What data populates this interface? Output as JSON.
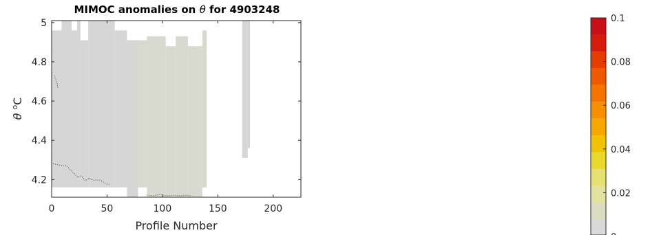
{
  "chart_data": {
    "type": "heatmap",
    "title": "MIMOC anomalies on θ  for 4903248",
    "title_parts": {
      "prefix": "MIMOC anomalies on ",
      "symbol": "θ",
      "suffix": "  for 4903248"
    },
    "xlabel": "Profile Number",
    "ylabel": "θ °C",
    "ylabel_parts": {
      "symbol": "θ",
      "unit_super": "o",
      "unit": "C"
    },
    "xlim": [
      0,
      225
    ],
    "ylim": [
      4.11,
      5.01
    ],
    "xticks": [
      0,
      50,
      100,
      150,
      200
    ],
    "yticks": [
      4.2,
      4.4,
      4.6,
      4.8,
      5
    ],
    "xtick_labels": [
      "0",
      "50",
      "100",
      "150",
      "200"
    ],
    "ytick_labels": [
      "4.2",
      "4.4",
      "4.6",
      "4.8",
      "5"
    ],
    "grid": false,
    "cell_color": "#d6d6d6",
    "cell_color_alt": "#d8d9cf",
    "columns": [
      {
        "x0": 0,
        "x1": 9,
        "y0": 4.16,
        "y1": 4.96
      },
      {
        "x0": 9,
        "x1": 18,
        "y0": 4.16,
        "y1": 5.01
      },
      {
        "x0": 18,
        "x1": 23,
        "y0": 4.16,
        "y1": 4.96
      },
      {
        "x0": 23,
        "x1": 26,
        "y0": 4.16,
        "y1": 5.01
      },
      {
        "x0": 26,
        "x1": 33,
        "y0": 4.16,
        "y1": 4.91
      },
      {
        "x0": 33,
        "x1": 57,
        "y0": 4.16,
        "y1": 5.01
      },
      {
        "x0": 57,
        "x1": 68,
        "y0": 4.16,
        "y1": 4.96
      },
      {
        "x0": 68,
        "x1": 78,
        "y0": 4.11,
        "y1": 4.91
      },
      {
        "x0": 78,
        "x1": 86,
        "y0": 4.16,
        "y1": 4.91
      },
      {
        "x0": 86,
        "x1": 103,
        "y0": 4.11,
        "y1": 4.93
      },
      {
        "x0": 103,
        "x1": 112,
        "y0": 4.11,
        "y1": 4.88
      },
      {
        "x0": 112,
        "x1": 123,
        "y0": 4.11,
        "y1": 4.93
      },
      {
        "x0": 123,
        "x1": 136,
        "y0": 4.11,
        "y1": 4.88
      },
      {
        "x0": 136,
        "x1": 140,
        "y0": 4.16,
        "y1": 4.96
      },
      {
        "x0": 172,
        "x1": 177,
        "y0": 4.31,
        "y1": 5.01
      },
      {
        "x0": 177,
        "x1": 179,
        "y0": 4.36,
        "y1": 5.01
      }
    ],
    "colorbar": {
      "ticks": [
        0,
        0.02,
        0.04,
        0.06,
        0.08,
        0.1
      ],
      "tick_labels": [
        "0",
        "0.02",
        "0.04",
        "0.06",
        "0.08",
        "0.1"
      ],
      "range": [
        0,
        0.1
      ],
      "colors": [
        "#d9d9d9",
        "#dcdcc0",
        "#e3e3a0",
        "#e8e070",
        "#e9d92a",
        "#f0c200",
        "#f4a800",
        "#f78f00",
        "#f57400",
        "#ef5a00",
        "#e63c00",
        "#d81c0c",
        "#c80f17"
      ]
    }
  }
}
